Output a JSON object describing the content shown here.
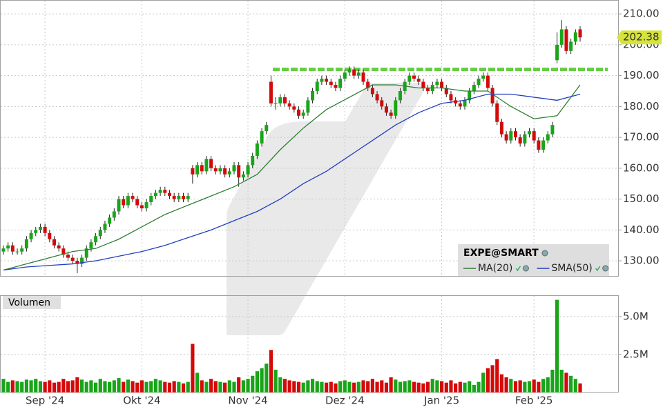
{
  "chart_data": [
    {
      "type": "candlestick",
      "ylim": [
        125.1,
        214.5
      ],
      "yticks": [
        {
          "value": 130,
          "label": "130.00"
        },
        {
          "value": 140,
          "label": "140.00"
        },
        {
          "value": 150,
          "label": "150.00"
        },
        {
          "value": 160,
          "label": "160.00"
        },
        {
          "value": 170,
          "label": "170.00"
        },
        {
          "value": 180,
          "label": "180.00"
        },
        {
          "value": 190,
          "label": "190.00"
        },
        {
          "value": 200,
          "label": "200.00"
        },
        {
          "value": 210,
          "label": "210.00"
        }
      ],
      "grid": true,
      "legend": "bottom-right",
      "resistance": {
        "value": 192,
        "color": "#66cc44"
      },
      "series": [
        {
          "name": "EXPE@SMART",
          "up_color": "#19a519",
          "down_color": "#d40a0a",
          "open": [
            133,
            134,
            135,
            133,
            133,
            134,
            137,
            139,
            140,
            141,
            139,
            137,
            135,
            134,
            132,
            131,
            130,
            129,
            131,
            134,
            136,
            138,
            140,
            142,
            144,
            146,
            150,
            148,
            151,
            150,
            148,
            147,
            149,
            151,
            152,
            153,
            152,
            151,
            150,
            151,
            150,
            160,
            158,
            161,
            159,
            163,
            160,
            159,
            160,
            158,
            159,
            161,
            157,
            158,
            161,
            164,
            168,
            172,
            188,
            181,
            181,
            183,
            181,
            180,
            179,
            177,
            178,
            182,
            185,
            188,
            189,
            188,
            187,
            186,
            189,
            191,
            192,
            190,
            191,
            188,
            186,
            184,
            182,
            180,
            178,
            177,
            182,
            185,
            188,
            190,
            189,
            188,
            186,
            185,
            187,
            188,
            186,
            184,
            182,
            181,
            180,
            182,
            185,
            187,
            189,
            190,
            186,
            181,
            175,
            171,
            169,
            172,
            170,
            168,
            171,
            172,
            169,
            166,
            169,
            171,
            195,
            200,
            205,
            198,
            201,
            205
          ],
          "high": [
            135,
            136,
            136,
            134,
            135,
            138,
            140,
            141,
            142,
            142,
            140,
            138,
            136,
            135,
            133,
            132,
            131,
            132,
            135,
            137,
            139,
            141,
            143,
            145,
            147,
            151,
            151,
            152,
            152,
            151,
            149,
            150,
            152,
            153,
            154,
            154,
            153,
            152,
            152,
            152,
            152,
            161,
            162,
            162,
            164,
            164,
            161,
            161,
            161,
            160,
            162,
            162,
            159,
            162,
            165,
            169,
            173,
            175,
            190,
            183,
            184,
            184,
            182,
            181,
            180,
            179,
            183,
            186,
            189,
            190,
            190,
            189,
            188,
            190,
            192,
            193,
            193,
            192,
            192,
            189,
            187,
            185,
            183,
            181,
            179,
            183,
            186,
            189,
            191,
            191,
            190,
            189,
            187,
            188,
            189,
            189,
            187,
            185,
            183,
            182,
            183,
            186,
            188,
            190,
            191,
            191,
            187,
            182,
            176,
            172,
            173,
            173,
            171,
            172,
            173,
            173,
            170,
            170,
            172,
            175,
            204,
            208,
            206,
            202,
            205,
            206
          ],
          "low": [
            132,
            133,
            132,
            132,
            132,
            133,
            136,
            138,
            139,
            138,
            136,
            134,
            133,
            131,
            130,
            129,
            126,
            128,
            130,
            133,
            135,
            137,
            139,
            141,
            143,
            145,
            147,
            147,
            149,
            147,
            146,
            146,
            148,
            150,
            151,
            151,
            150,
            149,
            149,
            149,
            149,
            155,
            157,
            158,
            158,
            159,
            158,
            158,
            157,
            157,
            158,
            154,
            156,
            157,
            160,
            163,
            167,
            171,
            180,
            179,
            180,
            180,
            179,
            178,
            176,
            176,
            177,
            181,
            184,
            187,
            187,
            186,
            185,
            185,
            188,
            190,
            189,
            189,
            187,
            185,
            183,
            181,
            179,
            177,
            176,
            176,
            181,
            184,
            187,
            188,
            187,
            185,
            184,
            184,
            186,
            185,
            183,
            181,
            180,
            179,
            179,
            181,
            184,
            186,
            188,
            185,
            180,
            174,
            170,
            168,
            168,
            169,
            167,
            167,
            170,
            168,
            165,
            165,
            168,
            170,
            194,
            199,
            197,
            197,
            200,
            201
          ],
          "close": [
            134,
            135,
            133,
            133,
            134,
            137,
            139,
            140,
            141,
            139,
            137,
            135,
            134,
            132,
            131,
            130,
            129,
            131,
            134,
            136,
            138,
            140,
            142,
            144,
            146,
            150,
            148,
            151,
            150,
            148,
            147,
            149,
            151,
            152,
            153,
            152,
            151,
            150,
            151,
            150,
            151,
            158,
            161,
            159,
            163,
            160,
            159,
            160,
            158,
            159,
            161,
            157,
            158,
            161,
            164,
            168,
            172,
            174,
            181,
            181,
            183,
            181,
            180,
            179,
            177,
            178,
            182,
            185,
            188,
            189,
            188,
            187,
            186,
            189,
            191,
            192,
            190,
            191,
            188,
            186,
            184,
            182,
            180,
            178,
            177,
            182,
            185,
            188,
            190,
            189,
            188,
            186,
            185,
            187,
            188,
            186,
            184,
            182,
            181,
            180,
            182,
            185,
            187,
            189,
            190,
            186,
            181,
            175,
            171,
            169,
            172,
            170,
            168,
            171,
            172,
            169,
            166,
            169,
            171,
            174,
            200,
            205,
            198,
            201,
            204,
            202.38
          ]
        },
        {
          "name": "MA(20)",
          "color": "#2e7d32",
          "x": [
            0,
            5,
            10,
            15,
            20,
            25,
            30,
            35,
            40,
            45,
            50,
            55,
            60,
            65,
            70,
            75,
            80,
            85,
            90,
            95,
            100,
            105,
            110,
            115,
            120,
            125
          ],
          "values": [
            127,
            129,
            131,
            133,
            134,
            137,
            141,
            145,
            148,
            151,
            154,
            158,
            166,
            173,
            179,
            183,
            187,
            187,
            186,
            186,
            185,
            185,
            180,
            176,
            177,
            187
          ]
        },
        {
          "name": "SMA(50)",
          "color": "#1f3fbf",
          "x": [
            0,
            5,
            10,
            15,
            20,
            25,
            30,
            35,
            40,
            45,
            50,
            55,
            60,
            65,
            70,
            75,
            80,
            85,
            90,
            95,
            100,
            105,
            110,
            115,
            120,
            125
          ],
          "values": [
            127,
            128,
            128.5,
            129,
            130,
            131.5,
            133,
            135,
            137.5,
            140,
            143,
            146,
            150,
            155,
            159,
            164,
            169,
            174,
            178,
            181,
            182,
            184,
            184,
            183,
            182,
            184
          ]
        }
      ]
    },
    {
      "type": "bar",
      "title": "Volumen",
      "categories": [
        null,
        null,
        null,
        null,
        null,
        null,
        null,
        null,
        null,
        "Sep '24",
        null,
        null,
        null,
        null,
        null,
        null,
        null,
        null,
        null,
        null,
        null,
        null,
        null,
        null,
        null,
        null,
        null,
        null,
        null,
        null,
        "Okt '24",
        null,
        null,
        null,
        null,
        null,
        null,
        null,
        null,
        null,
        null,
        null,
        null,
        null,
        null,
        null,
        null,
        null,
        null,
        null,
        null,
        null,
        null,
        "Nov '24",
        null,
        null,
        null,
        null,
        null,
        null,
        null,
        null,
        null,
        null,
        null,
        null,
        null,
        null,
        null,
        null,
        null,
        null,
        null,
        null,
        "Dez '24",
        null,
        null,
        null,
        null,
        null,
        null,
        null,
        null,
        null,
        null,
        null,
        null,
        null,
        null,
        null,
        null,
        null,
        null,
        null,
        null,
        "Jan '25",
        null,
        null,
        null,
        null,
        null,
        null,
        null,
        null,
        null,
        null,
        null,
        null,
        null,
        null,
        null,
        null,
        null,
        null,
        null,
        "Feb '25",
        null,
        null,
        null,
        null,
        null,
        null,
        null,
        null,
        null,
        null
      ],
      "values": [
        900000,
        700000,
        800000,
        750000,
        700000,
        850000,
        800000,
        900000,
        750000,
        700000,
        800000,
        650000,
        700000,
        900000,
        750000,
        800000,
        1000000,
        850000,
        700000,
        800000,
        650000,
        900000,
        750000,
        700000,
        800000,
        950000,
        700000,
        850000,
        750000,
        650000,
        800000,
        700000,
        750000,
        900000,
        800000,
        700000,
        650000,
        750000,
        700000,
        600000,
        700000,
        3200000,
        1300000,
        800000,
        700000,
        900000,
        750000,
        700000,
        650000,
        800000,
        700000,
        1000000,
        800000,
        900000,
        1100000,
        1400000,
        1600000,
        1900000,
        2800000,
        1500000,
        1000000,
        900000,
        800000,
        750000,
        700000,
        650000,
        800000,
        900000,
        750000,
        700000,
        650000,
        700000,
        600000,
        750000,
        800000,
        700000,
        650000,
        700000,
        800000,
        750000,
        900000,
        700000,
        800000,
        650000,
        1000000,
        850000,
        700000,
        750000,
        800000,
        700000,
        650000,
        600000,
        700000,
        900000,
        800000,
        750000,
        650000,
        800000,
        600000,
        700000,
        650000,
        750000,
        500000,
        700000,
        1300000,
        1600000,
        1800000,
        2200000,
        1200000,
        1000000,
        900000,
        750000,
        800000,
        700000,
        750000,
        850000,
        700000,
        900000,
        1000000,
        1500000,
        6100000,
        1500000,
        1300000,
        1100000,
        900000,
        600000
      ],
      "ylim": [
        0,
        6400000
      ],
      "yticks": [
        {
          "value": 2500000,
          "label": "2.5M"
        },
        {
          "value": 5000000,
          "label": "5.0M"
        }
      ]
    }
  ]
}
